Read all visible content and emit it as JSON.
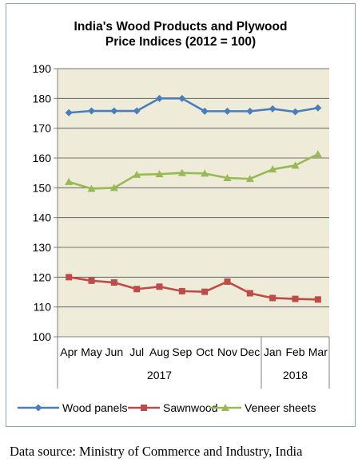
{
  "chart_data": {
    "type": "line",
    "title_lines": [
      "India's Wood Products and Plywood",
      "Price Indices (2012 = 100)"
    ],
    "categories": [
      "Apr",
      "May",
      "Jun",
      "Jul",
      "Aug",
      "Sep",
      "Oct",
      "Nov",
      "Dec",
      "Jan",
      "Feb",
      "Mar"
    ],
    "year_groups": [
      {
        "label": "2017",
        "start": 0,
        "end": 8
      },
      {
        "label": "2018",
        "start": 9,
        "end": 11
      }
    ],
    "ylim": [
      100,
      190
    ],
    "yticks": [
      100,
      110,
      120,
      130,
      140,
      150,
      160,
      170,
      180,
      190
    ],
    "grid": true,
    "plot_background": "#eeecd8",
    "legend_position": "bottom",
    "series": [
      {
        "name": "Wood panels",
        "color": "#4a7ebb",
        "marker": "diamond",
        "values": [
          175.2,
          175.8,
          175.8,
          175.8,
          180.0,
          180.0,
          175.7,
          175.7,
          175.7,
          176.5,
          175.5,
          176.8
        ]
      },
      {
        "name": "Sawnwood",
        "color": "#be4b48",
        "marker": "square",
        "values": [
          120.0,
          118.8,
          118.2,
          116.0,
          116.8,
          115.3,
          115.1,
          118.5,
          114.6,
          113.0,
          112.7,
          112.5
        ]
      },
      {
        "name": "Veneer sheets",
        "color": "#98b954",
        "marker": "triangle",
        "values": [
          152.0,
          149.7,
          150.0,
          154.4,
          154.6,
          155.0,
          154.8,
          153.3,
          153.0,
          156.2,
          157.5,
          161.3
        ]
      }
    ]
  },
  "source_note": "Data source: Ministry of Commerce and Industry, India"
}
